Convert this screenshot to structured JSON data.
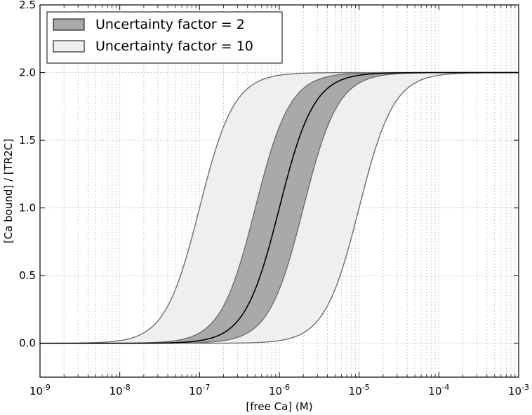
{
  "chart_data": {
    "type": "line",
    "title": "",
    "xlabel": "[free Ca] (M)",
    "ylabel": "[Ca bound] / [TR2C]",
    "xscale": "log",
    "xlim": [
      1e-09,
      0.001
    ],
    "ylim": [
      -0.25,
      2.5
    ],
    "xticks": [
      {
        "base": "10",
        "exp": "-9"
      },
      {
        "base": "10",
        "exp": "-8"
      },
      {
        "base": "10",
        "exp": "-7"
      },
      {
        "base": "10",
        "exp": "-6"
      },
      {
        "base": "10",
        "exp": "-5"
      },
      {
        "base": "10",
        "exp": "-4"
      },
      {
        "base": "10",
        "exp": "-3"
      }
    ],
    "yticks": [
      "0.0",
      "0.5",
      "1.0",
      "1.5",
      "2.0",
      "2.5"
    ],
    "grid": true,
    "legend_position": "top-left",
    "curve": {
      "n_sites": 2,
      "kd_central": 1e-06,
      "hill": 2
    },
    "series": [
      {
        "name": "",
        "kd": 1e-06,
        "role": "central-curve"
      },
      {
        "name": "Uncertainty factor = 2",
        "kd_low": 5e-07,
        "kd_high": 2e-06,
        "role": "band"
      },
      {
        "name": "Uncertainty factor = 10",
        "kd_low": 1e-07,
        "kd_high": 1e-05,
        "role": "band"
      }
    ],
    "colors": {
      "band_factor_2": "#a9a9a9",
      "band_factor_10": "#efefef",
      "band_edge": "#6e6e6e",
      "central_line": "#000000",
      "grid": "#b0b0b0"
    }
  }
}
